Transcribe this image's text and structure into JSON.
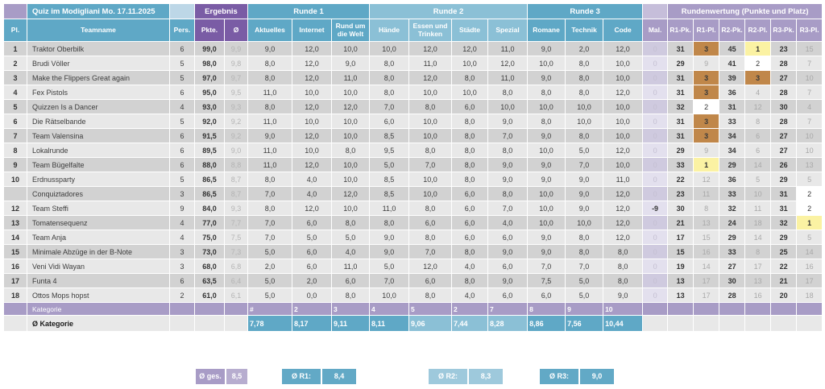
{
  "header": {
    "title": "Quiz im Modigliani Mo. 17.11.2025",
    "ergebnis": "Ergebnis",
    "runde1": "Runde 1",
    "runde2": "Runde 2",
    "runde3": "Runde 3",
    "rundenwertung": "Rundenwertung (Punkte und Platz)"
  },
  "table": {
    "columns": [
      "Pl.",
      "Teamname",
      "Pers.",
      "Pkte.",
      "Ø",
      "Aktuelles",
      "Internet",
      "Rund um die Welt",
      "Hände",
      "Essen und Trinken",
      "Städte",
      "Spezial",
      "Romane",
      "Technik",
      "Code",
      "Mal.",
      "R1-Pk.",
      "R1-Pl.",
      "R2-Pk.",
      "R2-Pl.",
      "R3-Pk.",
      "R3-Pl."
    ],
    "rows": [
      {
        "pl": "1",
        "team": "Traktor Oberbilk",
        "pers": "6",
        "pkte": "99,0",
        "avg": "9,9",
        "cat": [
          "9,0",
          "12,0",
          "10,0",
          "10,0",
          "12,0",
          "12,0",
          "11,0",
          "9,0",
          "2,0",
          "12,0"
        ],
        "mal": "0",
        "rw": [
          "31",
          "3",
          "45",
          "1",
          "23",
          "15"
        ]
      },
      {
        "pl": "2",
        "team": "Brudi Völler",
        "pers": "5",
        "pkte": "98,0",
        "avg": "9,8",
        "cat": [
          "8,0",
          "12,0",
          "9,0",
          "8,0",
          "11,0",
          "10,0",
          "12,0",
          "10,0",
          "8,0",
          "10,0"
        ],
        "mal": "0",
        "rw": [
          "29",
          "9",
          "41",
          "2",
          "28",
          "7"
        ]
      },
      {
        "pl": "3",
        "team": "Make the Flippers Great again",
        "pers": "5",
        "pkte": "97,0",
        "avg": "9,7",
        "cat": [
          "8,0",
          "12,0",
          "11,0",
          "8,0",
          "12,0",
          "8,0",
          "11,0",
          "9,0",
          "8,0",
          "10,0"
        ],
        "mal": "0",
        "rw": [
          "31",
          "3",
          "39",
          "3",
          "27",
          "10"
        ]
      },
      {
        "pl": "4",
        "team": "Fex Pistols",
        "pers": "6",
        "pkte": "95,0",
        "avg": "9,5",
        "cat": [
          "11,0",
          "10,0",
          "10,0",
          "8,0",
          "10,0",
          "10,0",
          "8,0",
          "8,0",
          "8,0",
          "12,0"
        ],
        "mal": "0",
        "rw": [
          "31",
          "3",
          "36",
          "4",
          "28",
          "7"
        ]
      },
      {
        "pl": "5",
        "team": "Quizzen Is a Dancer",
        "pers": "4",
        "pkte": "93,0",
        "avg": "9,3",
        "cat": [
          "8,0",
          "12,0",
          "12,0",
          "7,0",
          "8,0",
          "6,0",
          "10,0",
          "10,0",
          "10,0",
          "10,0"
        ],
        "mal": "0",
        "rw": [
          "32",
          "2",
          "31",
          "12",
          "30",
          "4"
        ]
      },
      {
        "pl": "6",
        "team": "Die Rätselbande",
        "pers": "5",
        "pkte": "92,0",
        "avg": "9,2",
        "cat": [
          "11,0",
          "10,0",
          "10,0",
          "6,0",
          "10,0",
          "8,0",
          "9,0",
          "8,0",
          "10,0",
          "10,0"
        ],
        "mal": "0",
        "rw": [
          "31",
          "3",
          "33",
          "8",
          "28",
          "7"
        ]
      },
      {
        "pl": "7",
        "team": "Team Valensina",
        "pers": "6",
        "pkte": "91,5",
        "avg": "9,2",
        "cat": [
          "9,0",
          "12,0",
          "10,0",
          "8,5",
          "10,0",
          "8,0",
          "7,0",
          "9,0",
          "8,0",
          "10,0"
        ],
        "mal": "0",
        "rw": [
          "31",
          "3",
          "34",
          "6",
          "27",
          "10"
        ]
      },
      {
        "pl": "8",
        "team": "Lokalrunde",
        "pers": "6",
        "pkte": "89,5",
        "avg": "9,0",
        "cat": [
          "11,0",
          "10,0",
          "8,0",
          "9,5",
          "8,0",
          "8,0",
          "8,0",
          "10,0",
          "5,0",
          "12,0"
        ],
        "mal": "0",
        "rw": [
          "29",
          "9",
          "34",
          "6",
          "27",
          "10"
        ]
      },
      {
        "pl": "9",
        "team": "Team Bügelfalte",
        "pers": "6",
        "pkte": "88,0",
        "avg": "8,8",
        "cat": [
          "11,0",
          "12,0",
          "10,0",
          "5,0",
          "7,0",
          "8,0",
          "9,0",
          "9,0",
          "7,0",
          "10,0"
        ],
        "mal": "0",
        "rw": [
          "33",
          "1",
          "29",
          "14",
          "26",
          "13"
        ]
      },
      {
        "pl": "10",
        "team": "Erdnussparty",
        "pers": "5",
        "pkte": "86,5",
        "avg": "8,7",
        "cat": [
          "8,0",
          "4,0",
          "10,0",
          "8,5",
          "10,0",
          "8,0",
          "9,0",
          "9,0",
          "9,0",
          "11,0"
        ],
        "mal": "0",
        "rw": [
          "22",
          "12",
          "36",
          "5",
          "29",
          "5"
        ]
      },
      {
        "pl": "",
        "team": "Conquiztadores",
        "pers": "3",
        "pkte": "86,5",
        "avg": "8,7",
        "cat": [
          "7,0",
          "4,0",
          "12,0",
          "8,5",
          "10,0",
          "6,0",
          "8,0",
          "10,0",
          "9,0",
          "12,0"
        ],
        "mal": "0",
        "rw": [
          "23",
          "11",
          "33",
          "10",
          "31",
          "2"
        ]
      },
      {
        "pl": "12",
        "team": "Team Steffi",
        "pers": "9",
        "pkte": "84,0",
        "avg": "9,3",
        "cat": [
          "8,0",
          "12,0",
          "10,0",
          "11,0",
          "8,0",
          "6,0",
          "7,0",
          "10,0",
          "9,0",
          "12,0"
        ],
        "mal": "-9",
        "rw": [
          "30",
          "8",
          "32",
          "11",
          "31",
          "2"
        ]
      },
      {
        "pl": "13",
        "team": "Tomatensequenz",
        "pers": "4",
        "pkte": "77,0",
        "avg": "7,7",
        "cat": [
          "7,0",
          "6,0",
          "8,0",
          "8,0",
          "6,0",
          "6,0",
          "4,0",
          "10,0",
          "10,0",
          "12,0"
        ],
        "mal": "0",
        "rw": [
          "21",
          "13",
          "24",
          "18",
          "32",
          "1"
        ]
      },
      {
        "pl": "14",
        "team": "Team Anja",
        "pers": "4",
        "pkte": "75,0",
        "avg": "7,5",
        "cat": [
          "7,0",
          "5,0",
          "5,0",
          "9,0",
          "8,0",
          "6,0",
          "6,0",
          "9,0",
          "8,0",
          "12,0"
        ],
        "mal": "0",
        "rw": [
          "17",
          "15",
          "29",
          "14",
          "29",
          "5"
        ]
      },
      {
        "pl": "15",
        "team": "Minimale Abzüge in der B-Note",
        "pers": "3",
        "pkte": "73,0",
        "avg": "7,3",
        "cat": [
          "5,0",
          "6,0",
          "4,0",
          "9,0",
          "7,0",
          "8,0",
          "9,0",
          "9,0",
          "8,0",
          "8,0"
        ],
        "mal": "0",
        "rw": [
          "15",
          "16",
          "33",
          "8",
          "25",
          "14"
        ]
      },
      {
        "pl": "16",
        "team": "Veni Vidi Wayan",
        "pers": "3",
        "pkte": "68,0",
        "avg": "6,8",
        "cat": [
          "2,0",
          "6,0",
          "11,0",
          "5,0",
          "12,0",
          "4,0",
          "6,0",
          "7,0",
          "7,0",
          "8,0"
        ],
        "mal": "0",
        "rw": [
          "19",
          "14",
          "27",
          "17",
          "22",
          "16"
        ]
      },
      {
        "pl": "17",
        "team": "Funta 4",
        "pers": "6",
        "pkte": "63,5",
        "avg": "6,4",
        "cat": [
          "5,0",
          "2,0",
          "6,0",
          "7,0",
          "6,0",
          "8,0",
          "9,0",
          "7,5",
          "5,0",
          "8,0"
        ],
        "mal": "0",
        "rw": [
          "13",
          "17",
          "30",
          "13",
          "21",
          "17"
        ]
      },
      {
        "pl": "18",
        "team": "Ottos Mops hopst",
        "pers": "2",
        "pkte": "61,0",
        "avg": "6,1",
        "cat": [
          "5,0",
          "0,0",
          "8,0",
          "10,0",
          "8,0",
          "4,0",
          "6,0",
          "6,0",
          "5,0",
          "9,0"
        ],
        "mal": "0",
        "rw": [
          "13",
          "17",
          "28",
          "16",
          "20",
          "18"
        ]
      }
    ]
  },
  "footer": {
    "kategorie_label": "Kategorie",
    "kategorie_values": [
      "#",
      "2",
      "3",
      "4",
      "5",
      "2",
      "7",
      "8",
      "9",
      "10"
    ],
    "avg_label": "Ø Kategorie",
    "avg_values": [
      "7,78",
      "8,17",
      "9,11",
      "8,11",
      "9,06",
      "7,44",
      "8,28",
      "8,86",
      "7,56",
      "10,44"
    ],
    "avg_styles": [
      "t",
      "t",
      "t",
      "t",
      "tl",
      "tl",
      "tl",
      "t",
      "t",
      "t"
    ],
    "summary": [
      {
        "label": "Ø ges.",
        "value": "8,5"
      },
      {
        "label": "Ø R1:",
        "value": "8,4"
      },
      {
        "label": "Ø R2:",
        "value": "8,3"
      },
      {
        "label": "Ø R3:",
        "value": "9,0"
      }
    ]
  },
  "colors": {
    "teal": "#5FA8C6",
    "teal_light": "#8BC0D6",
    "purple": "#7A5CA5",
    "lavender": "#A89CC6",
    "gold": "#FBF2A3",
    "bronze": "#C0874A",
    "row_dark": "#D2D2D2",
    "row_light": "#E8E8E8"
  }
}
